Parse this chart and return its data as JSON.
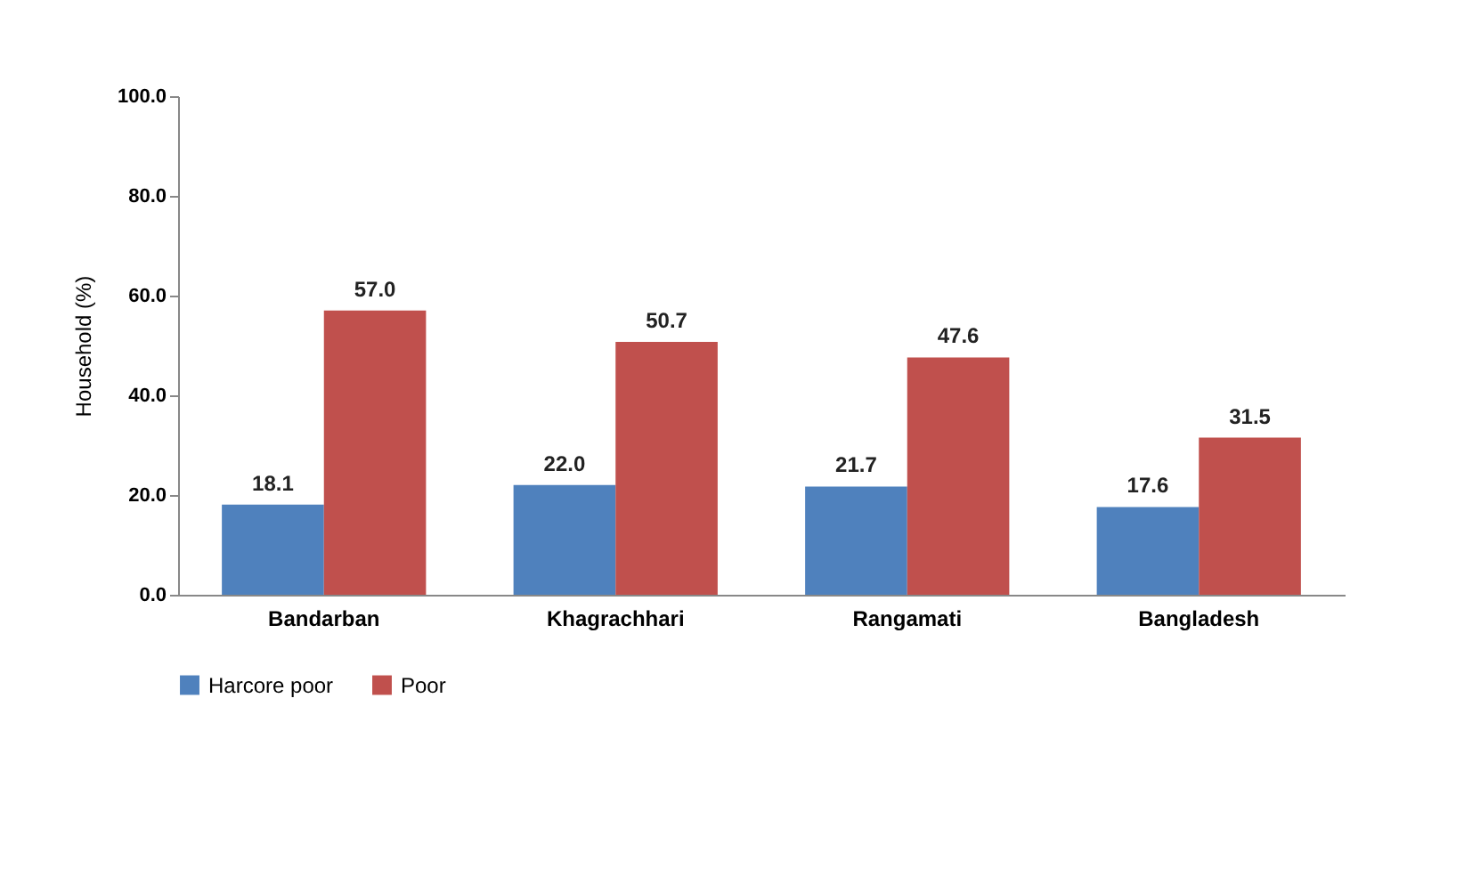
{
  "chart_data": {
    "type": "bar",
    "ylabel": "Household (%)",
    "categories": [
      "Bandarban",
      "Khagrachhari",
      "Rangamati",
      "Bangladesh"
    ],
    "series": [
      {
        "name": "Harcore poor",
        "color": "#4f81bd",
        "values": [
          18.1,
          22.0,
          21.7,
          17.6
        ],
        "value_labels": [
          "18.1",
          "22.0",
          "21.7",
          "17.6"
        ]
      },
      {
        "name": "Poor",
        "color": "#c0504d",
        "values": [
          57.0,
          50.7,
          47.6,
          31.5
        ],
        "value_labels": [
          "57.0",
          "50.7",
          "47.6",
          "31.5"
        ]
      }
    ],
    "ylim": [
      0,
      100
    ],
    "yticks": [
      {
        "value": 0,
        "label": "0.0"
      },
      {
        "value": 20,
        "label": "20.0"
      },
      {
        "value": 40,
        "label": "40.0"
      },
      {
        "value": 60,
        "label": "60.0"
      },
      {
        "value": 80,
        "label": "80.0"
      },
      {
        "value": 100,
        "label": "100.0"
      }
    ],
    "grid": false,
    "legend": "bottom"
  }
}
